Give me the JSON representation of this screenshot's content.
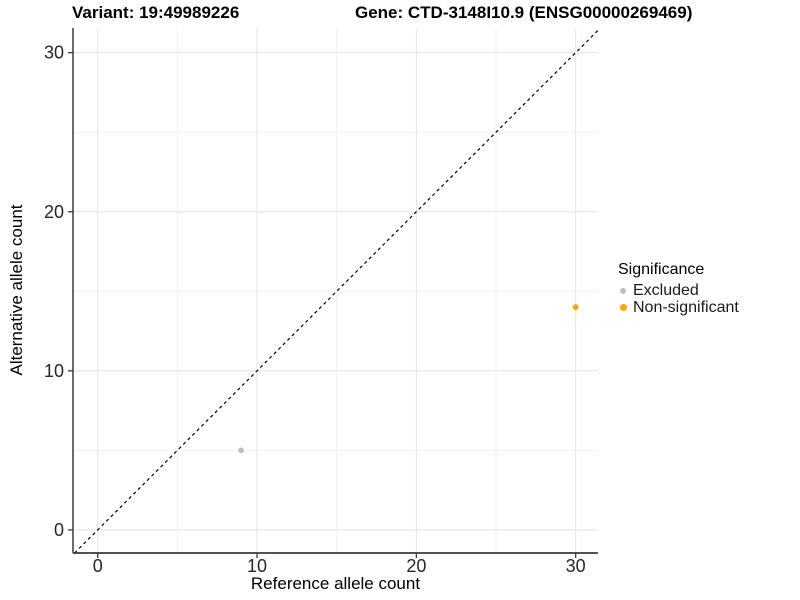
{
  "chart_data": {
    "type": "scatter",
    "title_left": "Variant: 19:49989226",
    "title_right": "Gene: CTD-3148I10.9 (ENSG00000269469)",
    "xlabel": "Reference allele count",
    "ylabel": "Alternative allele count",
    "x_ticks": [
      0,
      10,
      20,
      30
    ],
    "y_ticks": [
      0,
      10,
      20,
      30
    ],
    "x_minor_ticks": [
      5,
      15,
      25
    ],
    "y_minor_ticks": [
      5,
      15,
      25
    ],
    "xlim": [
      -1.55,
      31.4
    ],
    "ylim": [
      -1.45,
      31.55
    ],
    "grid": true,
    "identity_line": {
      "style": "dashed",
      "color": "#000000"
    },
    "points": [
      {
        "x": 9,
        "y": 5,
        "significance": "Excluded"
      },
      {
        "x": 30,
        "y": 14,
        "significance": "Non-significant"
      }
    ],
    "legend": {
      "title": "Significance",
      "position": "right",
      "entries": [
        {
          "label": "Excluded",
          "color": "#BEBEBE"
        },
        {
          "label": "Non-significant",
          "color": "#FFA500"
        }
      ]
    },
    "colors": {
      "grid_major": "#e4e4e4",
      "grid_minor": "#f1f1f1",
      "axis_line": "#3a3a3a",
      "tick_text": "#262626",
      "point_excluded": "#BEBEBE",
      "point_non_significant": "#FFA500"
    }
  }
}
